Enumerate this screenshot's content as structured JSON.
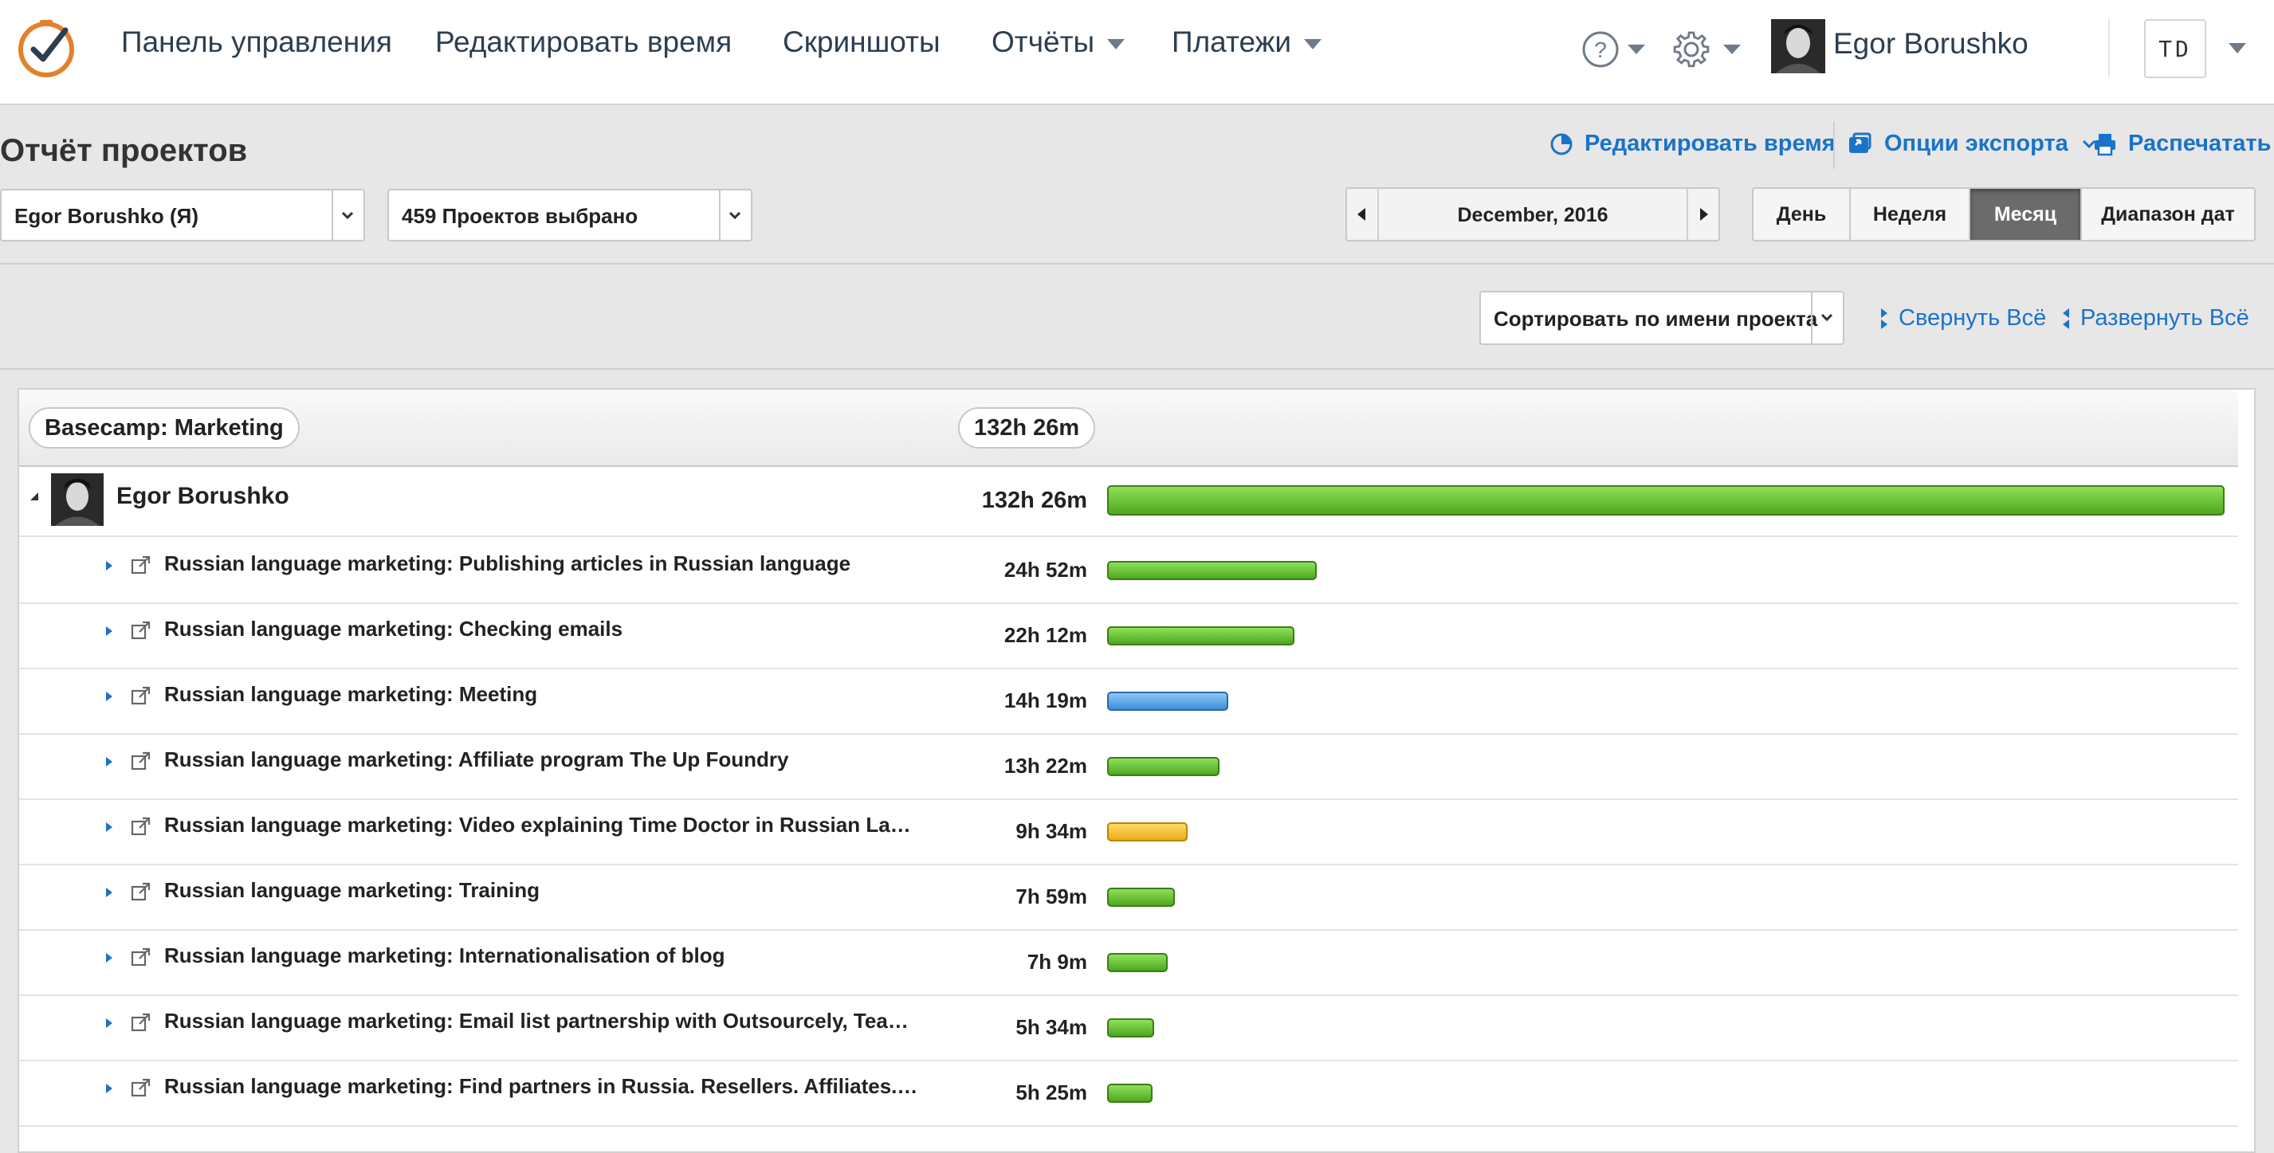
{
  "nav": {
    "items": [
      {
        "label": "Панель управления"
      },
      {
        "label": "Редактировать время"
      },
      {
        "label": "Скриншоты"
      },
      {
        "label": "Отчёты"
      },
      {
        "label": "Платежи"
      }
    ],
    "user_name": "Egor Borushko",
    "company_initials": "TD",
    "accent_color": "#e3812b"
  },
  "header": {
    "title": "Отчёт проектов",
    "actions": {
      "edit_time": "Редактировать время",
      "export": "Опции экспорта",
      "print": "Распечатать"
    }
  },
  "filters": {
    "user_select": "Egor Borushko (Я)",
    "projects_select": "459 Проектов выбрано",
    "period": "December, 2016",
    "range_tabs": [
      {
        "label": "День"
      },
      {
        "label": "Неделя"
      },
      {
        "label": "Месяц",
        "active": true
      },
      {
        "label": "Диапазон дат"
      }
    ]
  },
  "sort": {
    "select": "Сортировать по имени проекта",
    "collapse_all": "Свернуть Всё",
    "expand_all": "Развернуть Всё"
  },
  "report": {
    "project_name": "Basecamp: Marketing",
    "project_total": "132h 26m",
    "user": {
      "name": "Egor Borushko",
      "total": "132h 26m"
    },
    "tasks": [
      {
        "name": "Russian language marketing: Publishing articles in Russian language",
        "duration": "24h 52m",
        "color": "green",
        "share": 0.1878
      },
      {
        "name": "Russian language marketing: Checking emails",
        "duration": "22h 12m",
        "color": "green",
        "share": 0.1676
      },
      {
        "name": "Russian language marketing: Meeting",
        "duration": "14h 19m",
        "color": "blue",
        "share": 0.1081
      },
      {
        "name": "Russian language marketing: Affiliate program The Up Foundry",
        "duration": "13h 22m",
        "color": "green",
        "share": 0.1009
      },
      {
        "name": "Russian language marketing: Video explaining Time Doctor in Russian Langua…",
        "duration": "9h 34m",
        "color": "yellow",
        "share": 0.0722
      },
      {
        "name": "Russian language marketing: Training",
        "duration": "7h 59m",
        "color": "green",
        "share": 0.0603
      },
      {
        "name": "Russian language marketing: Internationalisation of blog",
        "duration": "7h 9m",
        "color": "green",
        "share": 0.054
      },
      {
        "name": "Russian language marketing: Email list partnership with Outsourcely, Teamwor…",
        "duration": "5h 34m",
        "color": "green",
        "share": 0.042
      },
      {
        "name": "Russian language marketing: Find partners in Russia. Resellers. Affiliates. Dat…",
        "duration": "5h 25m",
        "color": "green",
        "share": 0.0409
      }
    ]
  }
}
